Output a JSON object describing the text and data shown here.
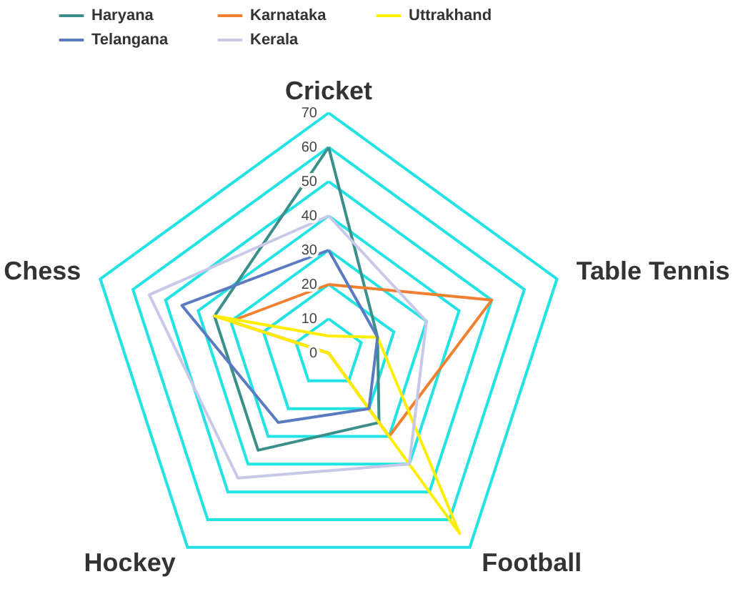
{
  "chart_data": {
    "type": "radar",
    "categories": [
      "Cricket",
      "Table Tennis",
      "Football",
      "Hockey",
      "Chess"
    ],
    "series": [
      {
        "name": "Haryana",
        "color": "#3a8f8a",
        "values": [
          60,
          15,
          25,
          35,
          35
        ]
      },
      {
        "name": "Karnataka",
        "color": "#f08030",
        "values": [
          20,
          50,
          30,
          0,
          30
        ]
      },
      {
        "name": "Uttrakhand",
        "color": "#ffee00",
        "values": [
          5,
          15,
          65,
          0,
          35
        ]
      },
      {
        "name": "Telangana",
        "color": "#5b7bc0",
        "values": [
          30,
          15,
          20,
          25,
          45
        ]
      },
      {
        "name": "Kerala",
        "color": "#c8c8e8",
        "values": [
          40,
          30,
          40,
          45,
          55
        ]
      }
    ],
    "ylim": [
      0,
      70
    ],
    "yticks": [
      0,
      10,
      20,
      30,
      40,
      50,
      60,
      70
    ],
    "grid": true,
    "legend": "top"
  }
}
